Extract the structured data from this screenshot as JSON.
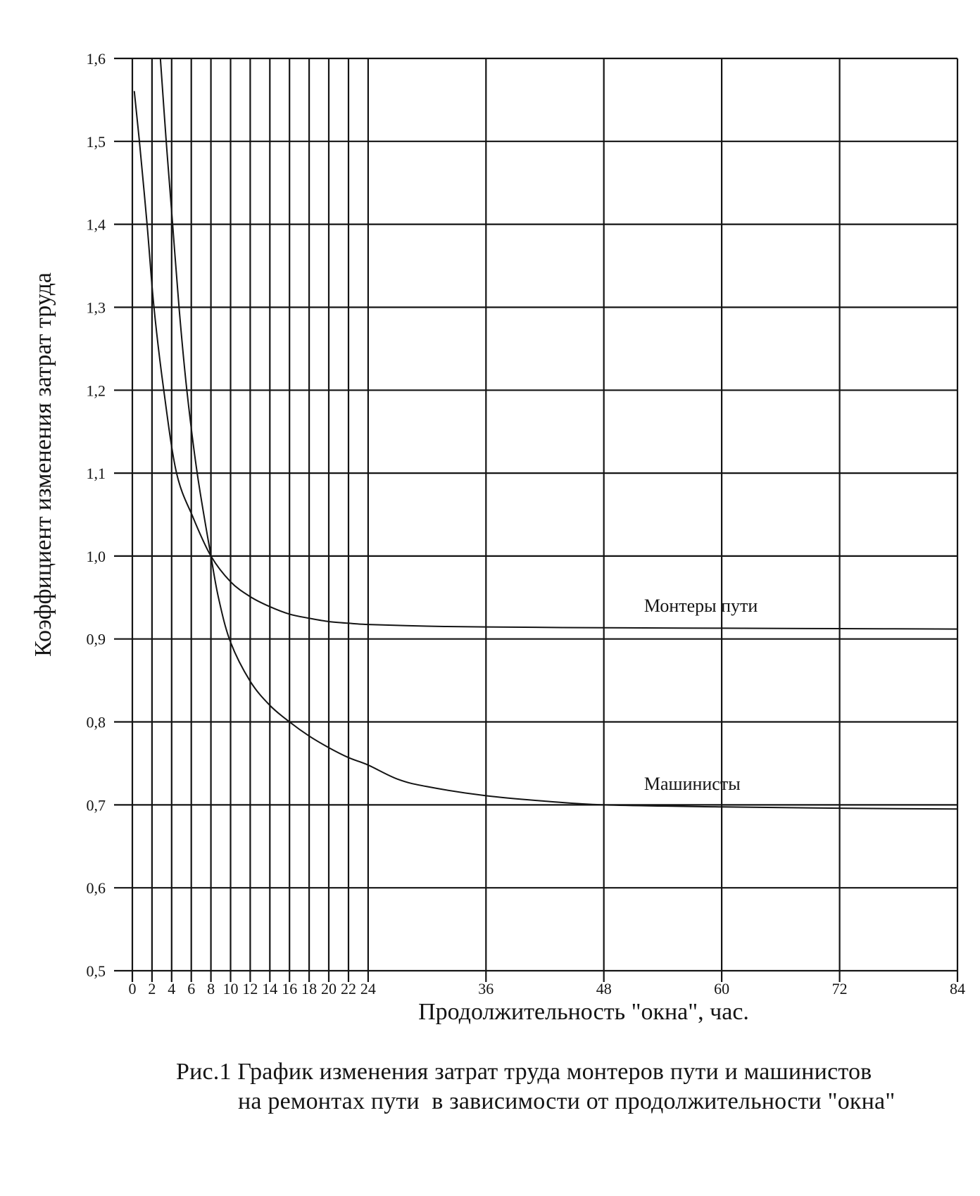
{
  "figure": {
    "caption_line1": "Рис.1 График изменения затрат труда монтеров пути и машинистов",
    "caption_line2": "на ремонтах пути  в зависимости от продолжительности \"окна\""
  },
  "chart_data": {
    "type": "line",
    "title": "",
    "xlabel": "Продолжительность \"окна\", час.",
    "ylabel": "Коэффициент изменения затрат труда",
    "x_range": [
      0,
      84
    ],
    "y_range": [
      0.5,
      1.6
    ],
    "grid": "both",
    "legend_position": "inline-labels",
    "ink_color": "#141414",
    "x_ticks": [
      {
        "v": 0,
        "label": "0"
      },
      {
        "v": 2,
        "label": "2"
      },
      {
        "v": 4,
        "label": "4"
      },
      {
        "v": 6,
        "label": "6"
      },
      {
        "v": 8,
        "label": "8"
      },
      {
        "v": 10,
        "label": "10"
      },
      {
        "v": 12,
        "label": "12"
      },
      {
        "v": 14,
        "label": "14"
      },
      {
        "v": 16,
        "label": "16"
      },
      {
        "v": 18,
        "label": "18"
      },
      {
        "v": 20,
        "label": "20"
      },
      {
        "v": 22,
        "label": "22"
      },
      {
        "v": 24,
        "label": "24"
      },
      {
        "v": 36,
        "label": "36"
      },
      {
        "v": 48,
        "label": "48"
      },
      {
        "v": 60,
        "label": "60"
      },
      {
        "v": 72,
        "label": "72"
      },
      {
        "v": 84,
        "label": "84"
      }
    ],
    "y_ticks": [
      {
        "v": 1.6,
        "label": "1,6"
      },
      {
        "v": 1.5,
        "label": "1,5"
      },
      {
        "v": 1.4,
        "label": "1,4"
      },
      {
        "v": 1.3,
        "label": "1,3"
      },
      {
        "v": 1.2,
        "label": "1,2"
      },
      {
        "v": 1.1,
        "label": "1,1"
      },
      {
        "v": 1.0,
        "label": "1,0"
      },
      {
        "v": 0.9,
        "label": "0,9"
      },
      {
        "v": 0.8,
        "label": "0,8"
      },
      {
        "v": 0.7,
        "label": "0,7"
      },
      {
        "v": 0.6,
        "label": "0,6"
      },
      {
        "v": 0.5,
        "label": "0,5"
      }
    ],
    "series": [
      {
        "name": "Монтеры пути",
        "label_anchor": {
          "x": 52.1,
          "y": 0.933
        },
        "points": [
          [
            0.2,
            1.56
          ],
          [
            0.7,
            1.502
          ],
          [
            1.5,
            1.4
          ],
          [
            2.2,
            1.3
          ],
          [
            3.2,
            1.2
          ],
          [
            4.5,
            1.1
          ],
          [
            6.2,
            1.046
          ],
          [
            8,
            1.0
          ],
          [
            10,
            0.969
          ],
          [
            12,
            0.951
          ],
          [
            14,
            0.939
          ],
          [
            16,
            0.93
          ],
          [
            18,
            0.925
          ],
          [
            20,
            0.921
          ],
          [
            22,
            0.919
          ],
          [
            24,
            0.9175
          ],
          [
            30,
            0.9155
          ],
          [
            36,
            0.9145
          ],
          [
            48,
            0.9135
          ],
          [
            60,
            0.913
          ],
          [
            72,
            0.9125
          ],
          [
            84,
            0.912
          ]
        ]
      },
      {
        "name": "Машинисты",
        "label_anchor": {
          "x": 52.1,
          "y": 0.718
        },
        "points": [
          [
            2.85,
            1.6
          ],
          [
            3.45,
            1.5
          ],
          [
            4.1,
            1.4
          ],
          [
            4.75,
            1.3
          ],
          [
            5.55,
            1.2
          ],
          [
            6.6,
            1.1
          ],
          [
            8,
            1.0
          ],
          [
            8.8,
            0.948
          ],
          [
            10,
            0.896
          ],
          [
            12,
            0.849
          ],
          [
            14,
            0.82
          ],
          [
            16,
            0.8
          ],
          [
            18,
            0.783
          ],
          [
            20,
            0.769
          ],
          [
            22,
            0.757
          ],
          [
            24,
            0.748
          ],
          [
            27,
            0.731
          ],
          [
            30,
            0.722
          ],
          [
            36,
            0.711
          ],
          [
            42,
            0.7045
          ],
          [
            48,
            0.7
          ],
          [
            60,
            0.6975
          ],
          [
            72,
            0.696
          ],
          [
            84,
            0.695
          ]
        ]
      }
    ]
  }
}
